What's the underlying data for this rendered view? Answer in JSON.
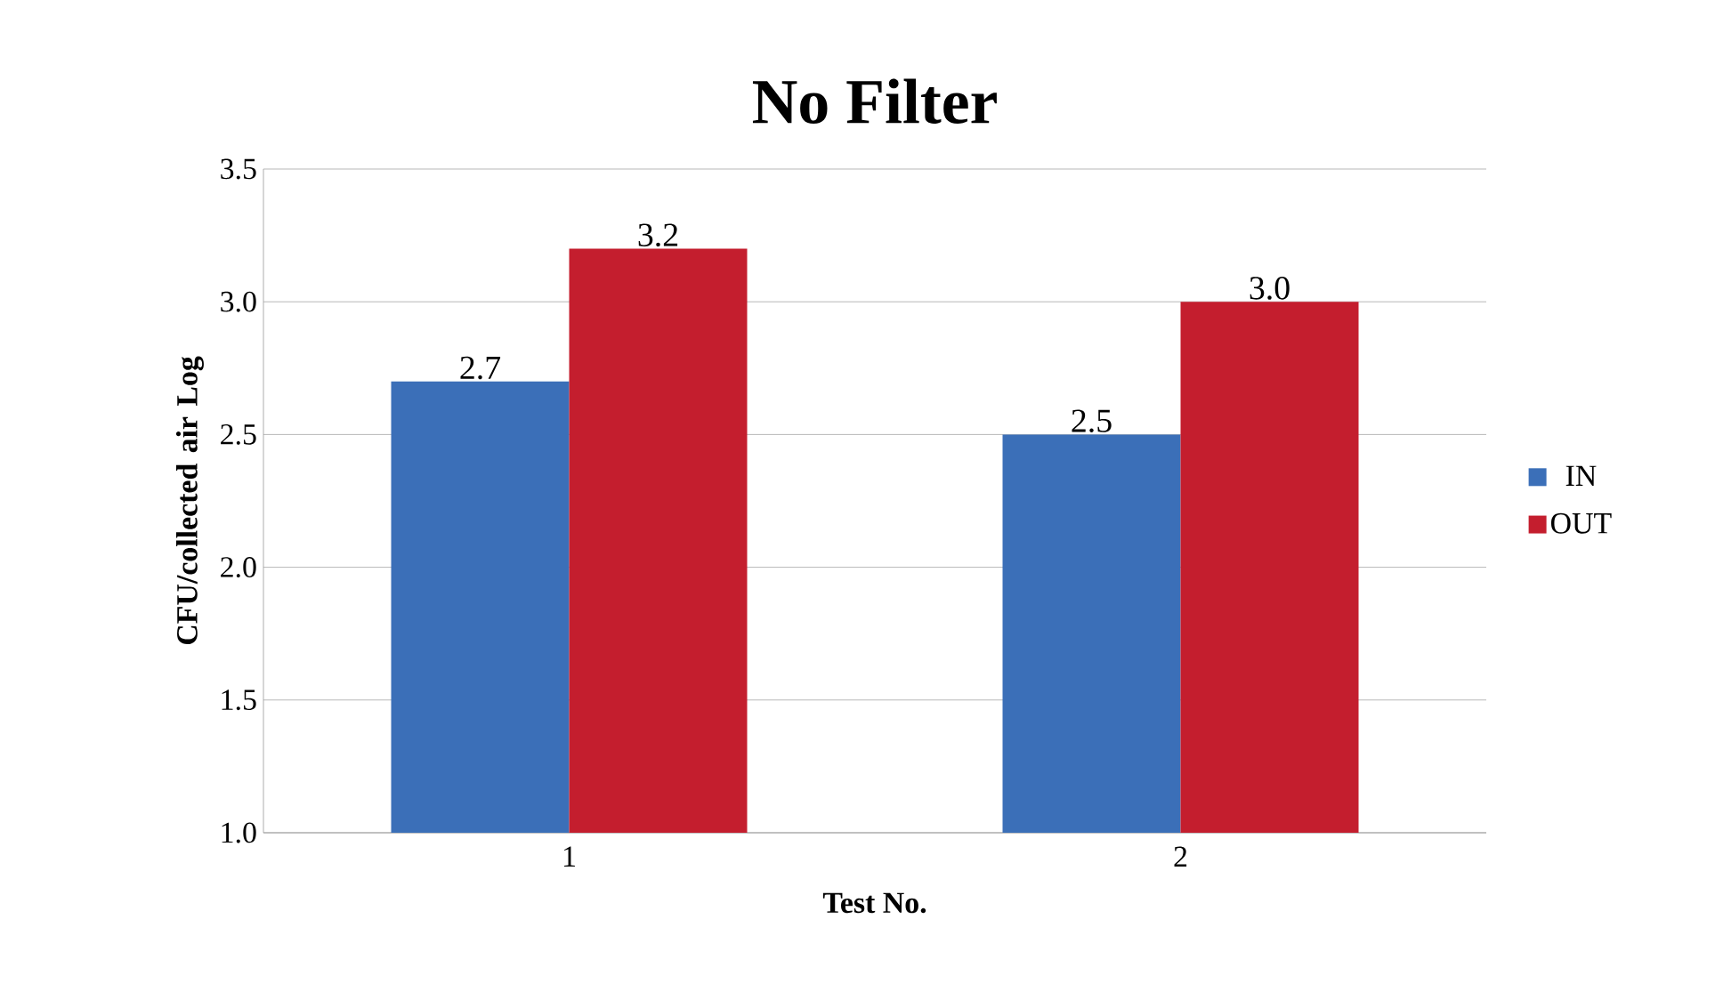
{
  "chart_data": {
    "type": "bar",
    "title": "No Filter",
    "xlabel": "Test No.",
    "ylabel": "CFU/collected air Log",
    "categories": [
      "1",
      "2"
    ],
    "series": [
      {
        "name": "IN",
        "color": "#3b6fb8",
        "values": [
          2.7,
          2.5
        ],
        "value_labels": [
          "2.7",
          "2.5"
        ]
      },
      {
        "name": "OUT",
        "color": "#c41e2e",
        "values": [
          3.2,
          3.0
        ],
        "value_labels": [
          "3.2",
          "3.0"
        ]
      }
    ],
    "ylim": [
      1.0,
      3.5
    ],
    "yticks": [
      {
        "value": 1.0,
        "label": "1.0"
      },
      {
        "value": 1.5,
        "label": "1.5"
      },
      {
        "value": 2.0,
        "label": "2.0"
      },
      {
        "value": 2.5,
        "label": "2.5"
      },
      {
        "value": 3.0,
        "label": "3.0"
      },
      {
        "value": 3.5,
        "label": "3.5"
      }
    ],
    "grid": "y",
    "legend": "right"
  }
}
